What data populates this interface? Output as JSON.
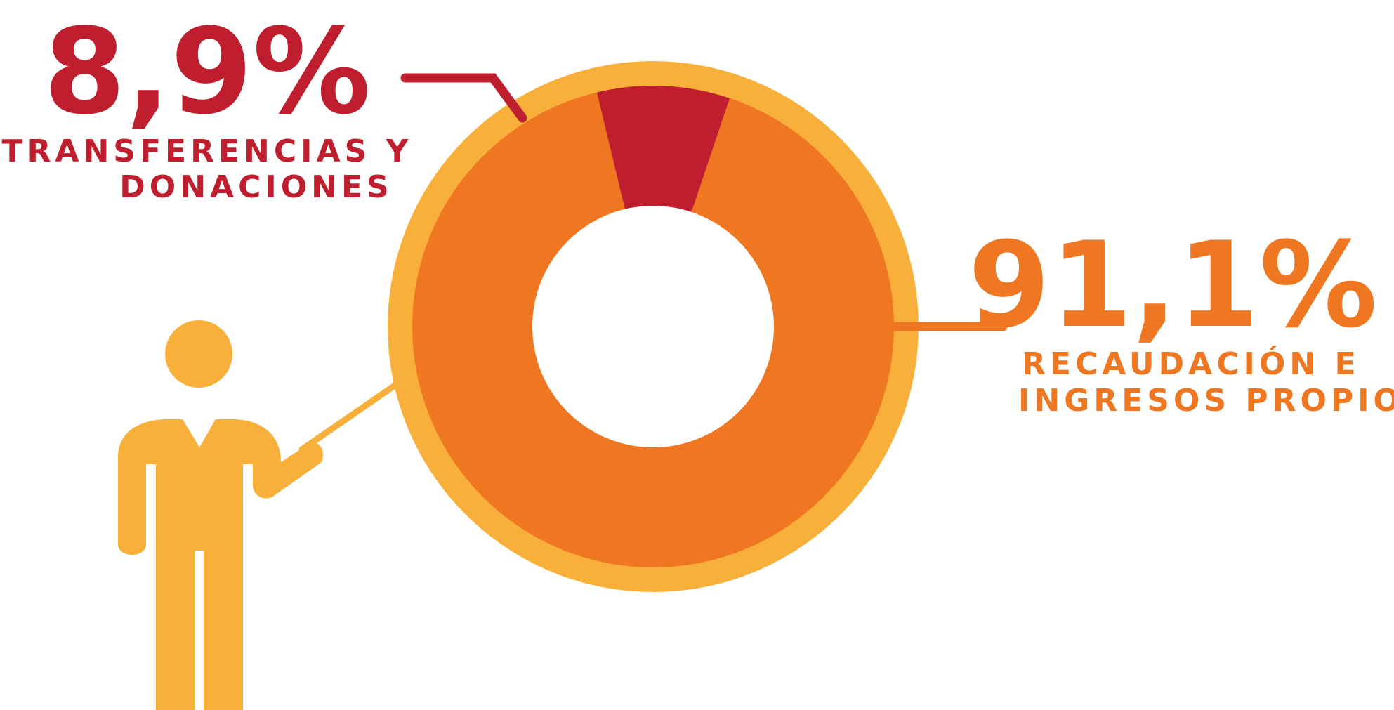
{
  "colors": {
    "outer_ring": "#F9B03B",
    "recaudacion": "#F07722",
    "transferencias": "#BE1E2D",
    "figure": "#F9B03B",
    "background": "#FFFFFF"
  },
  "chart_data": {
    "type": "pie",
    "style": "donut",
    "slices": [
      {
        "value": 91.1,
        "percent_label": "91,1%",
        "label_lines": [
          "RECAUDACIÓN E",
          "INGRESOS PROPIOS"
        ],
        "color": "#F07722"
      },
      {
        "value": 8.9,
        "percent_label": "8,9%",
        "label_lines": [
          "TRANSFERENCIAS Y",
          "DONACIONES"
        ],
        "color": "#BE1E2D"
      }
    ]
  },
  "figure": {
    "icon": "presenter-person-icon"
  }
}
